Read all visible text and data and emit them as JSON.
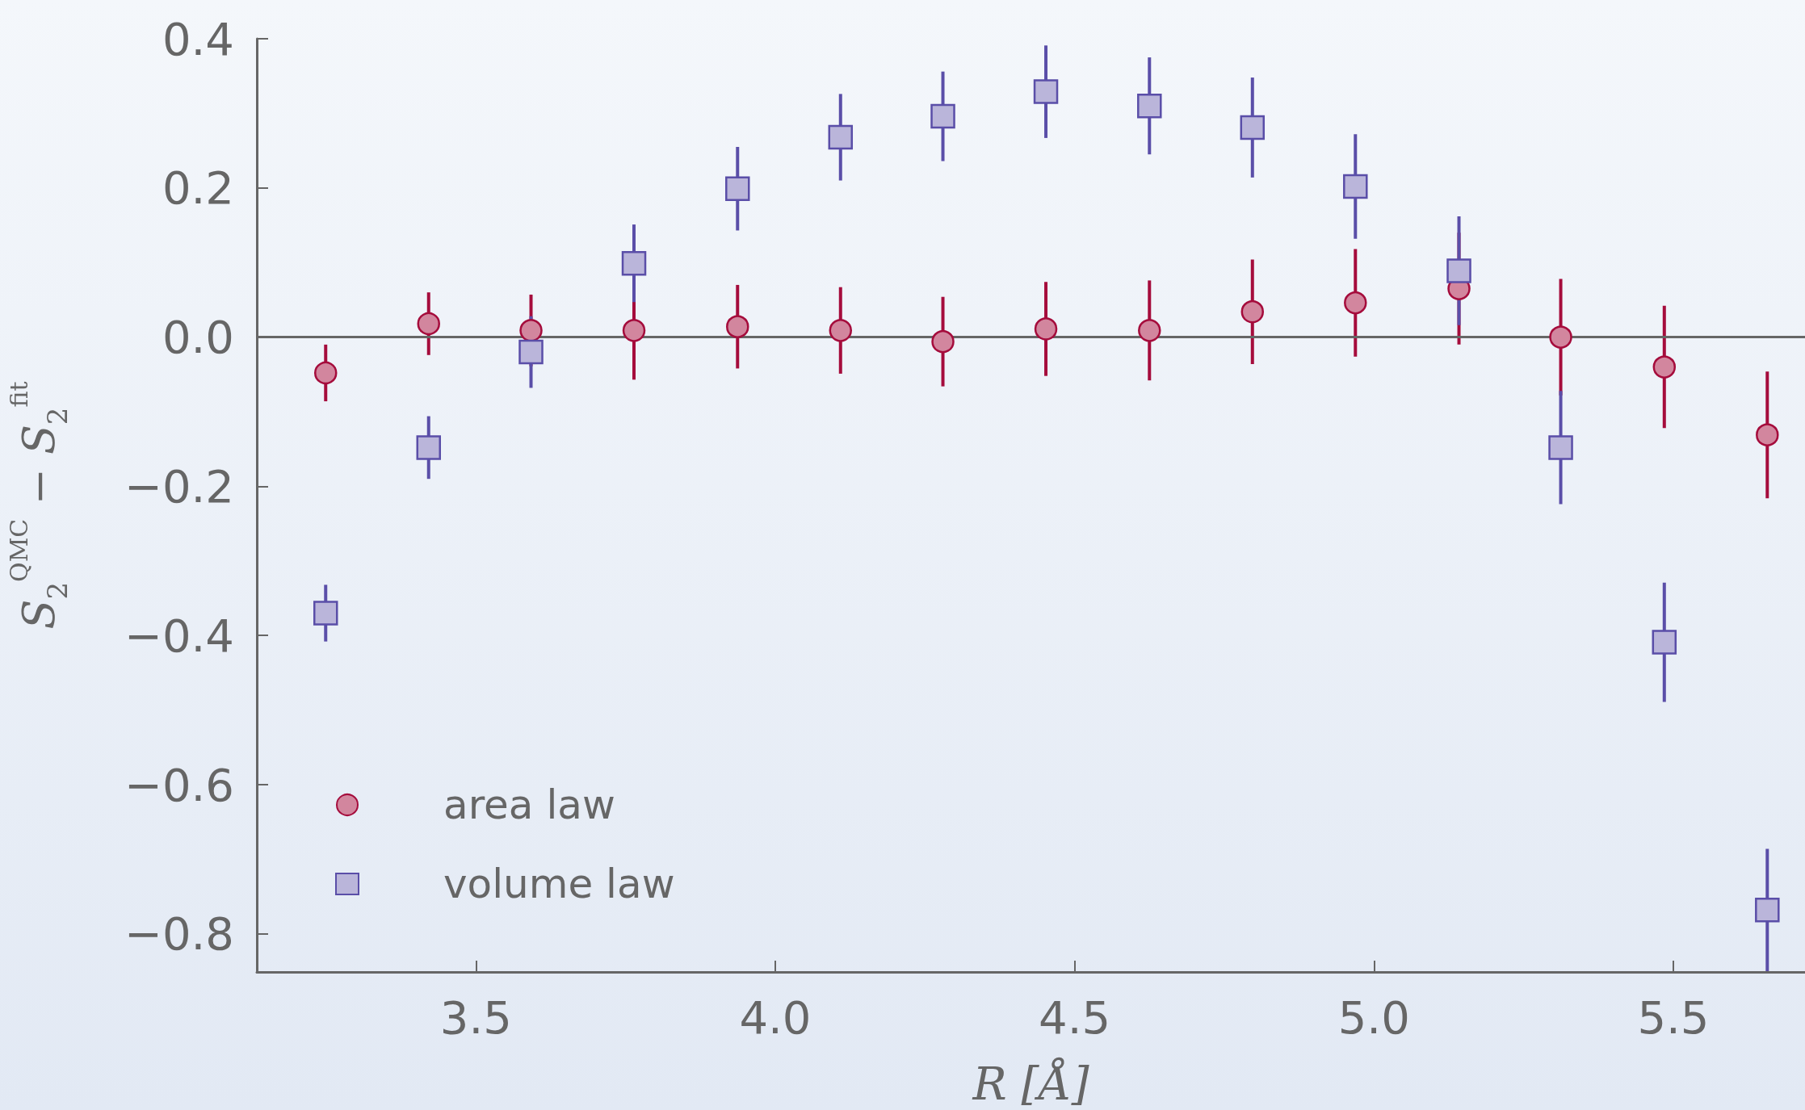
{
  "chart_data": {
    "type": "scatter",
    "xlabel": "R [Å]",
    "ylabel": "S$_{2}$$^{QMC}$ − S$_{2}$$^{fit}$",
    "x": [
      3.249,
      3.421,
      3.592,
      3.764,
      3.937,
      4.109,
      4.28,
      4.452,
      4.625,
      4.797,
      4.969,
      5.142,
      5.312,
      5.485,
      5.657
    ],
    "series": [
      {
        "name": "area law",
        "color": "#a50c3c",
        "marker": "circle",
        "values": [
          -0.048,
          0.018,
          0.009,
          0.009,
          0.014,
          0.009,
          -0.006,
          0.011,
          0.009,
          0.034,
          0.046,
          0.065,
          0.0,
          -0.04,
          -0.131
        ],
        "errors": [
          0.038,
          0.042,
          0.048,
          0.066,
          0.056,
          0.058,
          0.06,
          0.063,
          0.067,
          0.07,
          0.072,
          0.075,
          0.078,
          0.082,
          0.085
        ]
      },
      {
        "name": "volume law",
        "color": "#5a4ea8",
        "marker": "square",
        "values": [
          -0.37,
          -0.148,
          -0.02,
          0.099,
          0.199,
          0.268,
          0.296,
          0.329,
          0.31,
          0.281,
          0.202,
          0.089,
          -0.148,
          -0.409,
          -0.768
        ],
        "errors": [
          0.038,
          0.042,
          0.048,
          0.052,
          0.056,
          0.058,
          0.06,
          0.062,
          0.065,
          0.067,
          0.07,
          0.073,
          0.076,
          0.08,
          0.082
        ]
      }
    ],
    "xlim": [
      3.134,
      5.72
    ],
    "ylim": [
      -0.851,
      0.4
    ],
    "xticks": [
      3.5,
      {
        "value": 4,
        "label": "4.0"
      },
      4.5,
      {
        "value": 5,
        "label": "5.0"
      },
      5.5
    ],
    "yticks": [
      {
        "value": 0.4,
        "label": "0.4"
      },
      {
        "value": 0.2,
        "label": "0.2"
      },
      {
        "value": 0,
        "label": "0.0"
      },
      {
        "value": -0.2,
        "label": "−0.2"
      },
      {
        "value": -0.4,
        "label": "−0.4"
      },
      {
        "value": -0.6,
        "label": "−0.6"
      },
      {
        "value": -0.8,
        "label": "−0.8"
      }
    ],
    "ref_lines": [
      {
        "axis": "y",
        "value": 0,
        "color": "#666666"
      }
    ],
    "legend": "bottom left",
    "grid": false
  }
}
